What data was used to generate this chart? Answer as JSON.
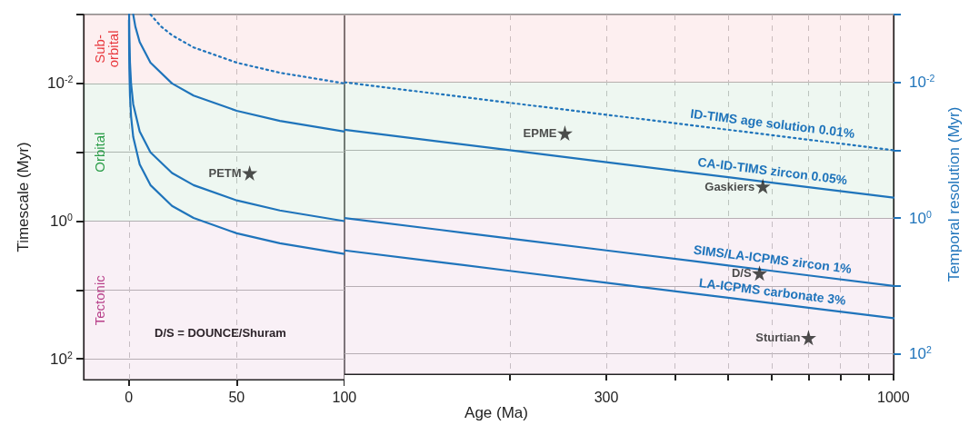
{
  "chart_data": [
    {
      "type": "line",
      "ylabel": "Timescale (Myr)",
      "xlim": [
        -21,
        100
      ],
      "xticks": [
        0,
        50,
        100
      ],
      "ylim": [
        200,
        0.001
      ],
      "yticks": [
        {
          "value": 0.001,
          "label": null
        },
        {
          "value": 0.01,
          "label": "10$^{-2}$"
        },
        {
          "value": 0.1,
          "label": null
        },
        {
          "value": 1,
          "label": "10$^{0}$"
        },
        {
          "value": 10,
          "label": null
        },
        {
          "value": 100,
          "label": "10$^{2}$"
        }
      ],
      "log": "y",
      "grid": true,
      "legend": false,
      "marker": "none",
      "series": [
        {
          "color": "#1f74bb",
          "line_style": "dotted",
          "x": [
            10,
            15,
            20,
            30,
            50,
            70,
            100
          ],
          "values": [
            0.001,
            0.0015,
            0.002,
            0.003,
            0.005,
            0.007,
            0.01
          ]
        },
        {
          "color": "#1f74bb",
          "line_style": "solid",
          "x": [
            2,
            3,
            5,
            10,
            20,
            30,
            50,
            70,
            100
          ],
          "values": [
            0.001,
            0.0015,
            0.0025,
            0.005,
            0.01,
            0.015,
            0.025,
            0.035,
            0.05
          ]
        },
        {
          "color": "#1f74bb",
          "line_style": "solid",
          "x": [
            0.1,
            0.2,
            0.5,
            1,
            2,
            5,
            10,
            20,
            30,
            50,
            70,
            100
          ],
          "values": [
            0.001,
            0.002,
            0.005,
            0.01,
            0.02,
            0.05,
            0.1,
            0.2,
            0.3,
            0.5,
            0.7,
            1
          ]
        },
        {
          "color": "#1f74bb",
          "line_style": "solid",
          "x": [
            0.04,
            0.1,
            0.2,
            0.5,
            1,
            2,
            5,
            10,
            20,
            30,
            50,
            70,
            100
          ],
          "values": [
            0.0012,
            0.003,
            0.006,
            0.015,
            0.03,
            0.06,
            0.15,
            0.3,
            0.6,
            0.9,
            1.5,
            2.1,
            3
          ]
        },
        {
          "type": "scatter",
          "marker": "star",
          "color": "#222222",
          "x": [
            56
          ],
          "values": [
            0.2
          ]
        }
      ],
      "bands": [
        {
          "axis": "y",
          "from": 0.001,
          "to": 0.01,
          "label": "Sub-\norbital",
          "color": "#e8383d"
        },
        {
          "axis": "y",
          "from": 0.01,
          "to": 1,
          "label": "Orbital",
          "color": "#2a9d48"
        },
        {
          "axis": "y",
          "from": 1,
          "to": 200,
          "label": "Tectonic",
          "color": "#b8408a"
        }
      ],
      "annotations": [
        {
          "text": "PETM",
          "x": 56,
          "y": 0.2
        },
        "D/S = DOUNCE/Shuram"
      ]
    },
    {
      "type": "line",
      "xlabel": "Age (Ma)",
      "ylabel": "Temporal resolution (Myr)",
      "xlim": [
        100,
        1000
      ],
      "xticks": [
        {
          "value": 200,
          "label": null
        },
        300,
        {
          "value": 400,
          "label": null
        },
        {
          "value": 500,
          "label": null
        },
        {
          "value": 600,
          "label": null
        },
        {
          "value": 700,
          "label": null
        },
        {
          "value": 800,
          "label": null
        },
        {
          "value": 900,
          "label": null
        },
        1000
      ],
      "ylim": [
        200,
        0.001
      ],
      "yticks": [
        {
          "value": 0.001,
          "label": null
        },
        {
          "value": 0.01,
          "label": "10$^{-2}$"
        },
        {
          "value": 0.1,
          "label": null
        },
        {
          "value": 1,
          "label": "10$^{0}$"
        },
        {
          "value": 10,
          "label": null
        },
        {
          "value": 100,
          "label": "10$^{2}$"
        }
      ],
      "log": "xy",
      "grid": true,
      "legend": false,
      "marker": "none",
      "series": [
        {
          "name": "ID-TIMS age solution 0.01%",
          "color": "#1f74bb",
          "line_style": "dotted",
          "x": [
            100,
            150,
            200,
            300,
            500,
            600,
            700,
            1000
          ],
          "values": [
            0.01,
            0.015,
            0.02,
            0.03,
            0.05,
            0.06,
            0.07,
            0.1
          ]
        },
        {
          "name": "CA-ID-TIMS zircon 0.05%",
          "color": "#1f74bb",
          "line_style": "solid",
          "x": [
            100,
            150,
            200,
            300,
            500,
            600,
            700,
            1000
          ],
          "values": [
            0.05,
            0.075,
            0.1,
            0.15,
            0.25,
            0.3,
            0.35,
            0.5
          ]
        },
        {
          "name": "SIMS/LA-ICPMS zircon 1%",
          "color": "#1f74bb",
          "line_style": "solid",
          "x": [
            100,
            150,
            200,
            300,
            500,
            600,
            700,
            1000
          ],
          "values": [
            1,
            1.5,
            2,
            3,
            5,
            6,
            7,
            10
          ]
        },
        {
          "name": "LA-ICPMS carbonate 3%",
          "color": "#1f74bb",
          "line_style": "solid",
          "x": [
            100,
            150,
            200,
            300,
            500,
            600,
            700,
            1000
          ],
          "values": [
            3,
            4.5,
            6,
            9,
            15,
            18,
            21,
            30
          ]
        },
        {
          "type": "scatter",
          "marker": "star",
          "color": "#222222",
          "x": [
            252,
            578,
            570,
            700
          ],
          "values": [
            0.056,
            0.34,
            6.5,
            58
          ]
        }
      ],
      "bands": [
        {
          "axis": "y",
          "from": 0.001,
          "to": 0.01,
          "color": "#e8383d"
        },
        {
          "axis": "y",
          "from": 0.01,
          "to": 1,
          "color": "#2a9d48"
        },
        {
          "axis": "y",
          "from": 1,
          "to": 200,
          "color": "#b8408a"
        }
      ],
      "annotations": [
        {
          "text": "EPME",
          "x": 252,
          "y": 0.056
        },
        {
          "text": "Gaskiers",
          "x": 578,
          "y": 0.34
        },
        {
          "text": "D/S",
          "x": 570,
          "y": 6.5
        },
        {
          "text": "Sturtian",
          "x": 700,
          "y": 58
        }
      ]
    }
  ]
}
